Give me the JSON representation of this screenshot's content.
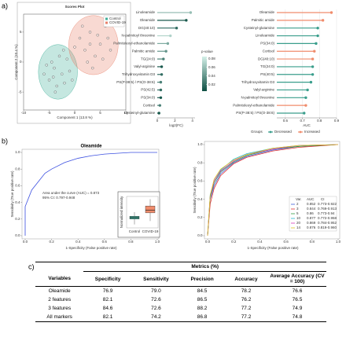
{
  "panel_labels": [
    "a)",
    "b)",
    "c)"
  ],
  "chart_data": [
    {
      "type": "scatter",
      "title": "Scores Plot",
      "x_label": "Component 1 (13.8 %)",
      "y_label": "Component 2 (10.4 %)",
      "xlim": [
        -10,
        10
      ],
      "ylim": [
        -8,
        8
      ],
      "xticks": [
        -10,
        -5,
        0,
        5,
        10
      ],
      "yticks": [
        -5,
        0,
        5
      ],
      "legend": "top-right",
      "series": [
        {
          "name": "Control",
          "color": "#3fae98",
          "x": [
            -6,
            -5,
            -4.5,
            -4,
            -3.5,
            -3,
            -2.5,
            -2,
            -1.5,
            -1,
            -5.5,
            -3.8,
            -2.2,
            -0.5,
            -4.2
          ],
          "values": [
            -2,
            -3,
            0,
            -1,
            -4,
            1,
            -2,
            -3.5,
            0.5,
            -1.5,
            -0.5,
            -5,
            2,
            -3,
            -2.5
          ]
        },
        {
          "name": "COVID-19",
          "color": "#e8806a",
          "x": [
            1,
            2,
            3,
            4,
            5,
            6,
            7,
            2.5,
            3.5,
            4.5,
            5.5,
            1.5,
            0,
            6.5,
            3
          ],
          "values": [
            4,
            2,
            5,
            1,
            3,
            6,
            2,
            0,
            -1,
            4.5,
            0.5,
            6,
            2.5,
            4,
            3
          ]
        }
      ]
    },
    {
      "type": "lollipop",
      "x_label": "log2(FC)",
      "categories": [
        "Linoleamide",
        "Oleamide",
        "DG(40:10)",
        "N-palmitoyl threonine",
        "Palmitoleoyl-ethanolamide",
        "Palmitic amide",
        "TG(24:0)",
        "Valyl-arginine",
        "Trihydroxyvitamin D3",
        "PS(P-38:5) / PS(O-38:6)",
        "PS(42:5)",
        "PS(34:0)",
        "Cortisol",
        "Cysteinyl-glutamine"
      ],
      "values": [
        3.8,
        3.3,
        2.2,
        1.5,
        1.2,
        1.0,
        0.7,
        0.5,
        0.5,
        0.4,
        0.4,
        0.4,
        0.3,
        0.2
      ],
      "p_values": [
        0.06,
        0.01,
        0.02,
        0.07,
        0.05,
        0.04,
        0.03,
        0.01,
        0.02,
        0.03,
        0.02,
        0.01,
        0.03,
        0.01
      ],
      "xlim": [
        0,
        4.3
      ],
      "xticks": [
        0,
        2,
        4
      ],
      "colorbar": {
        "title": "p-value",
        "clim": [
          0.005,
          0.085
        ],
        "ticks": [
          0.02,
          0.04,
          0.06,
          0.08
        ],
        "colors": [
          "#0d4f43",
          "#d4f0e8"
        ]
      }
    },
    {
      "type": "lollipop",
      "x_label": "AUC",
      "categories": [
        "Oleamide",
        "Palmitic amide",
        "Cysteinyl-glutamine",
        "Linoleamide",
        "PS(34:0)",
        "Cortisol",
        "DG(40:10)",
        "TG(24:0)",
        "PS(40:5)",
        "Trihydroxyvitamin D3",
        "Valyl-arginine",
        "N-palmitoyl threonine",
        "Palmitoleoyl-ethanolamide",
        "PS(P-38:5) / PS(O-38:6)"
      ],
      "values": [
        0.87,
        0.82,
        0.79,
        0.79,
        0.78,
        0.77,
        0.76,
        0.76,
        0.76,
        0.75,
        0.73,
        0.72,
        0.72,
        0.71
      ],
      "groups": [
        "Increased",
        "Increased",
        "Decreased",
        "Decreased",
        "Decreased",
        "Increased",
        "Increased",
        "Decreased",
        "Decreased",
        "Decreased",
        "Decreased",
        "Decreased",
        "Increased",
        "Decreased"
      ],
      "xlim": [
        0.55,
        0.9
      ],
      "xticks": [
        0.6,
        0.7,
        0.8,
        0.9
      ],
      "grid": true,
      "legend": {
        "title": "Groups",
        "items": [
          {
            "name": "Decreased",
            "color": "#3a9e8c"
          },
          {
            "name": "Increased",
            "color": "#f08c6c"
          }
        ]
      }
    },
    {
      "type": "roc",
      "title": "Oleamide",
      "x_label": "1-Specificity (False positive rate)",
      "y_label": "Sensitivity (True positive rate)",
      "xlim": [
        0,
        1
      ],
      "ylim": [
        0,
        1
      ],
      "xticks": [
        {
          "value": 0,
          "label": "0.0"
        },
        0.2,
        0.4,
        0.6,
        0.8,
        {
          "value": 1,
          "label": "1.0"
        }
      ],
      "yticks": [
        {
          "value": 0,
          "label": "0.0"
        },
        0.2,
        0.4,
        0.6,
        0.8,
        {
          "value": 1,
          "label": "1.0"
        }
      ],
      "annotations": [
        "Area under the curve (AUC) = 0.873",
        "95% CI: 0.797-0.948"
      ],
      "series": [
        {
          "color": "#3b4fe0",
          "x": [
            0,
            0,
            0.05,
            0.1,
            0.15,
            0.2,
            0.3,
            0.4,
            0.5,
            0.6,
            0.8,
            1
          ],
          "values": [
            0,
            0.35,
            0.55,
            0.65,
            0.75,
            0.8,
            0.88,
            0.93,
            0.96,
            0.98,
            1,
            1
          ]
        }
      ]
    },
    {
      "type": "box",
      "y_label": "Normalized intensity",
      "categories": [
        "Control",
        "COVID-19"
      ],
      "ylim": [
        -2,
        2.6
      ],
      "colors": [
        "#3a9e8c",
        "#f08c6c"
      ],
      "boxes": [
        {
          "min": -1.5,
          "q1": -0.7,
          "median": -0.5,
          "q3": -0.3,
          "max": 0.3
        },
        {
          "min": -1.0,
          "q1": 0.2,
          "median": 0.6,
          "q3": 1.2,
          "max": 2.2
        }
      ]
    },
    {
      "type": "roc",
      "x_label": "1-Specificity (False positive rate)",
      "y_label": "Sensitivity (True positive rate)",
      "xlim": [
        0,
        1
      ],
      "ylim": [
        0,
        1
      ],
      "xticks": [
        {
          "value": 0,
          "label": "0.0"
        },
        0.2,
        0.4,
        0.6,
        0.8,
        {
          "value": 1,
          "label": "1.0"
        }
      ],
      "yticks": [
        {
          "value": 0,
          "label": "0.0"
        },
        0.2,
        0.4,
        0.6,
        0.8,
        {
          "value": 1,
          "label": "1.0"
        }
      ],
      "legend_header": [
        "Var.",
        "AUC",
        "CI"
      ],
      "legend": "bottom-right",
      "series": [
        {
          "name": "2",
          "auc": 0.852,
          "ci": "0.773-0.922",
          "color": "#3b5bdb",
          "x": [
            0,
            0.02,
            0.05,
            0.1,
            0.2,
            0.3,
            0.5,
            0.7,
            1
          ],
          "values": [
            0,
            0.4,
            0.55,
            0.68,
            0.8,
            0.87,
            0.94,
            0.98,
            1
          ]
        },
        {
          "name": "3",
          "auc": 0.844,
          "ci": "0.769-0.913",
          "color": "#e03131",
          "x": [
            0,
            0.02,
            0.05,
            0.1,
            0.2,
            0.3,
            0.5,
            0.7,
            1
          ],
          "values": [
            0,
            0.35,
            0.52,
            0.66,
            0.79,
            0.86,
            0.93,
            0.97,
            1
          ]
        },
        {
          "name": "5",
          "auc": 0.86,
          "ci": "0.773-0.94",
          "color": "#2f9e44",
          "x": [
            0,
            0.02,
            0.05,
            0.1,
            0.2,
            0.3,
            0.5,
            0.7,
            1
          ],
          "values": [
            0,
            0.42,
            0.58,
            0.7,
            0.81,
            0.88,
            0.95,
            0.98,
            1
          ]
        },
        {
          "name": "10",
          "auc": 0.877,
          "ci": "0.772-0.958",
          "color": "#22b8cf",
          "x": [
            0,
            0.02,
            0.05,
            0.1,
            0.2,
            0.3,
            0.5,
            0.7,
            1
          ],
          "values": [
            0,
            0.45,
            0.6,
            0.72,
            0.84,
            0.9,
            0.96,
            0.99,
            1
          ]
        },
        {
          "name": "20",
          "auc": 0.869,
          "ci": "0.784-0.952",
          "color": "#d63ab9",
          "x": [
            0,
            0.02,
            0.05,
            0.1,
            0.2,
            0.3,
            0.5,
            0.7,
            1
          ],
          "values": [
            0,
            0.43,
            0.6,
            0.71,
            0.82,
            0.89,
            0.95,
            0.99,
            1
          ]
        },
        {
          "name": "14",
          "auc": 0.876,
          "ci": "0.819-0.960",
          "color": "#e0c020",
          "x": [
            0,
            0.02,
            0.05,
            0.1,
            0.2,
            0.3,
            0.5,
            0.7,
            1
          ],
          "values": [
            0,
            0.44,
            0.62,
            0.73,
            0.83,
            0.89,
            0.96,
            0.99,
            1
          ]
        }
      ]
    }
  ],
  "table": {
    "group_header": "Metrics (%)",
    "columns": [
      "Variables",
      "Specificity",
      "Sensitivity",
      "Precision",
      "Accuracy",
      "Average Accuracy (CV = 100)"
    ],
    "rows": [
      [
        "Oleamide",
        "76.9",
        "79.0",
        "84.5",
        "78.2",
        "76.6"
      ],
      [
        "2 features",
        "82.1",
        "72.6",
        "86.5",
        "76.2",
        "76.5"
      ],
      [
        "3 features",
        "84.6",
        "72.6",
        "88.2",
        "77.2",
        "74.9"
      ],
      [
        "All markers",
        "82.1",
        "74.2",
        "86.8",
        "77.2",
        "74.8"
      ]
    ]
  }
}
